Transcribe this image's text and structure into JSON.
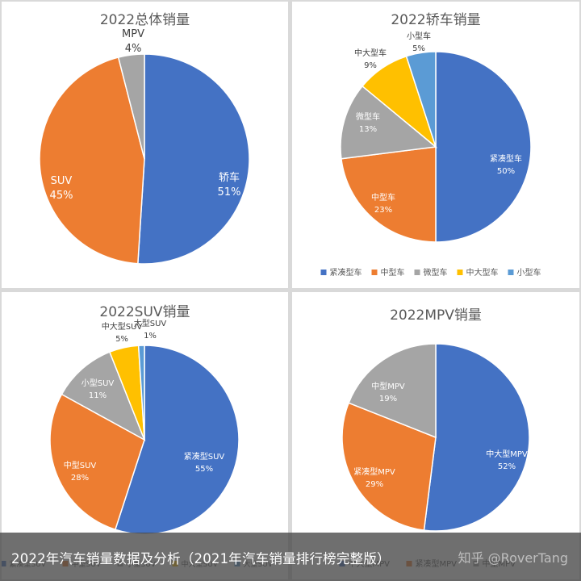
{
  "caption": "2022年汽车销量数据及分析（2021年汽车销量排行榜完整版）",
  "watermark": "知乎 @RoverTang",
  "colors": [
    "#4472c4",
    "#ed7d31",
    "#a5a5a5",
    "#ffc000",
    "#5b9bd5"
  ],
  "chart_data": [
    {
      "type": "pie",
      "title": "2022总体销量",
      "categories": [
        "轿车",
        "SUV",
        "MPV"
      ],
      "values": [
        51,
        45,
        4
      ],
      "labels": [
        "51%",
        "45%",
        "4%"
      ],
      "legend": []
    },
    {
      "type": "pie",
      "title": "2022轿车销量",
      "categories": [
        "紧凑型车",
        "中型车",
        "微型车",
        "中大型车",
        "小型车"
      ],
      "values": [
        50,
        23,
        13,
        9,
        5
      ],
      "labels": [
        "50%",
        "23%",
        "13%",
        "9%",
        "5%"
      ],
      "legend": [
        "紧凑型车",
        "中型车",
        "微型车",
        "中大型车",
        "小型车"
      ]
    },
    {
      "type": "pie",
      "title": "2022SUV销量",
      "categories": [
        "紧凑型SUV",
        "中型SUV",
        "小型SUV",
        "中大型SUV",
        "大型SUV"
      ],
      "values": [
        55,
        28,
        11,
        5,
        1
      ],
      "labels": [
        "55%",
        "28%",
        "11%",
        "5%",
        "1%"
      ],
      "legend": [
        "紧凑型SUV",
        "中型SUV",
        "小型SUV",
        "中大型SUV",
        "大型SUV"
      ]
    },
    {
      "type": "pie",
      "title": "2022MPV销量",
      "categories": [
        "中大型MPV",
        "紧凑型MPV",
        "中型MPV"
      ],
      "values": [
        52,
        29,
        19
      ],
      "labels": [
        "52%",
        "29%",
        "19%"
      ],
      "legend": [
        "中大型MPV",
        "紧凑型MPV",
        "中型MPV"
      ]
    }
  ]
}
